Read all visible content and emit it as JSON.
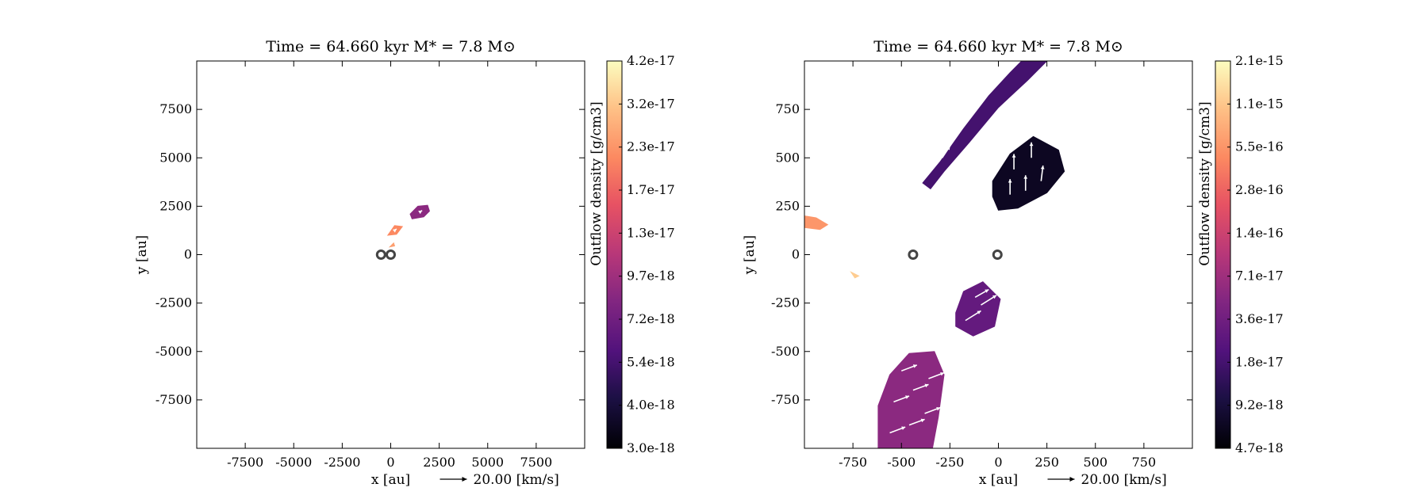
{
  "chart_data": [
    {
      "type": "heatmap",
      "title": "Time = 64.660 kyr    M* = 7.8 M⊙",
      "xlabel": "x [au]",
      "ylabel": "y [au]",
      "xlim": [
        -10000,
        10000
      ],
      "ylim": [
        -10000,
        10000
      ],
      "xticks": [
        -7500,
        -5000,
        -2500,
        0,
        2500,
        5000,
        7500
      ],
      "yticks": [
        -7500,
        -5000,
        -2500,
        0,
        2500,
        5000,
        7500
      ],
      "quiver_key": "20.00 [km/s]",
      "colorbar": {
        "label": "Outflow density [g/cm3]",
        "ticks": [
          "3.0e-18",
          "4.0e-18",
          "5.4e-18",
          "7.2e-18",
          "9.7e-18",
          "1.3e-17",
          "1.7e-17",
          "2.3e-17",
          "3.2e-17",
          "4.2e-17"
        ]
      },
      "sinks": [
        {
          "x": -500,
          "y": 0
        },
        {
          "x": 0,
          "y": 0
        }
      ],
      "regions": [
        {
          "t": 0.4,
          "points": [
            [
              1000,
              2100
            ],
            [
              1400,
              2500
            ],
            [
              1900,
              2550
            ],
            [
              2000,
              2250
            ],
            [
              1700,
              1950
            ],
            [
              1100,
              1850
            ]
          ]
        },
        {
          "t": 0.75,
          "points": [
            [
              -150,
              1000
            ],
            [
              200,
              1500
            ],
            [
              600,
              1450
            ],
            [
              300,
              1050
            ]
          ]
        },
        {
          "t": 0.8,
          "points": [
            [
              -50,
              400
            ],
            [
              150,
              600
            ],
            [
              200,
              450
            ]
          ]
        }
      ],
      "arrows": [
        {
          "x": 1500,
          "y": 2200,
          "u": 120,
          "v": 80
        },
        {
          "x": 200,
          "y": 1250,
          "u": 100,
          "v": 80
        }
      ]
    },
    {
      "type": "heatmap",
      "title": "Time = 64.660 kyr    M* = 7.8 M⊙",
      "xlabel": "x [au]",
      "ylabel": "y [au]",
      "xlim": [
        -1000,
        1000
      ],
      "ylim": [
        -1000,
        1000
      ],
      "xticks": [
        -750,
        -500,
        -250,
        0,
        250,
        500,
        750
      ],
      "yticks": [
        -750,
        -500,
        -250,
        0,
        250,
        500,
        750
      ],
      "quiver_key": "20.00 [km/s]",
      "colorbar": {
        "label": "Outflow density [g/cm3]",
        "ticks": [
          "4.7e-18",
          "9.2e-18",
          "1.8e-17",
          "3.6e-17",
          "7.1e-17",
          "1.4e-16",
          "2.8e-16",
          "5.5e-16",
          "1.1e-15",
          "2.1e-15"
        ]
      },
      "sinks": [
        {
          "x": -440,
          "y": 0
        },
        {
          "x": -5,
          "y": 0
        }
      ],
      "regions": [
        {
          "t": 0.22,
          "points": [
            [
              -390,
              370
            ],
            [
              -300,
              480
            ],
            [
              -180,
              650
            ],
            [
              -50,
              820
            ],
            [
              60,
              940
            ],
            [
              120,
              1000
            ],
            [
              250,
              1000
            ],
            [
              150,
              900
            ],
            [
              0,
              760
            ],
            [
              -150,
              580
            ],
            [
              -280,
              430
            ],
            [
              -350,
              340
            ]
          ]
        },
        {
          "t": 0.06,
          "points": [
            [
              -30,
              380
            ],
            [
              60,
              520
            ],
            [
              180,
              610
            ],
            [
              310,
              540
            ],
            [
              340,
              430
            ],
            [
              250,
              320
            ],
            [
              100,
              240
            ],
            [
              0,
              230
            ],
            [
              -30,
              300
            ]
          ]
        },
        {
          "t": 0.3,
          "points": [
            [
              -220,
              -300
            ],
            [
              -180,
              -190
            ],
            [
              -80,
              -140
            ],
            [
              10,
              -230
            ],
            [
              -20,
              -370
            ],
            [
              -130,
              -420
            ],
            [
              -220,
              -370
            ]
          ]
        },
        {
          "t": 0.4,
          "points": [
            [
              -620,
              -1000
            ],
            [
              -620,
              -780
            ],
            [
              -560,
              -620
            ],
            [
              -460,
              -510
            ],
            [
              -330,
              -500
            ],
            [
              -280,
              -620
            ],
            [
              -310,
              -840
            ],
            [
              -340,
              -1000
            ]
          ]
        },
        {
          "t": 0.78,
          "points": [
            [
              -1000,
              200
            ],
            [
              -940,
              190
            ],
            [
              -880,
              155
            ],
            [
              -920,
              130
            ],
            [
              -1000,
              140
            ]
          ]
        },
        {
          "t": 0.9,
          "points": [
            [
              -760,
              -90
            ],
            [
              -720,
              -110
            ],
            [
              -740,
              -120
            ]
          ]
        }
      ],
      "arrows": [
        {
          "x": -290,
          "y": 500,
          "u": 40,
          "v": 60
        },
        {
          "x": -170,
          "y": 700,
          "u": 40,
          "v": 60
        },
        {
          "x": -40,
          "y": 850,
          "u": 40,
          "v": 60
        },
        {
          "x": 60,
          "y": 310,
          "u": 0,
          "v": 80
        },
        {
          "x": 140,
          "y": 330,
          "u": 0,
          "v": 80
        },
        {
          "x": 220,
          "y": 380,
          "u": 10,
          "v": 80
        },
        {
          "x": 80,
          "y": 440,
          "u": 0,
          "v": 80
        },
        {
          "x": 170,
          "y": 500,
          "u": 0,
          "v": 80
        },
        {
          "x": -170,
          "y": -340,
          "u": 80,
          "v": 50
        },
        {
          "x": -90,
          "y": -260,
          "u": 80,
          "v": 50
        },
        {
          "x": -120,
          "y": -220,
          "u": 70,
          "v": 40
        },
        {
          "x": -560,
          "y": -920,
          "u": 80,
          "v": 30
        },
        {
          "x": -460,
          "y": -880,
          "u": 80,
          "v": 30
        },
        {
          "x": -380,
          "y": -820,
          "u": 80,
          "v": 30
        },
        {
          "x": -540,
          "y": -760,
          "u": 80,
          "v": 30
        },
        {
          "x": -440,
          "y": -700,
          "u": 80,
          "v": 30
        },
        {
          "x": -360,
          "y": -640,
          "u": 80,
          "v": 30
        },
        {
          "x": -500,
          "y": -600,
          "u": 80,
          "v": 30
        }
      ]
    }
  ]
}
